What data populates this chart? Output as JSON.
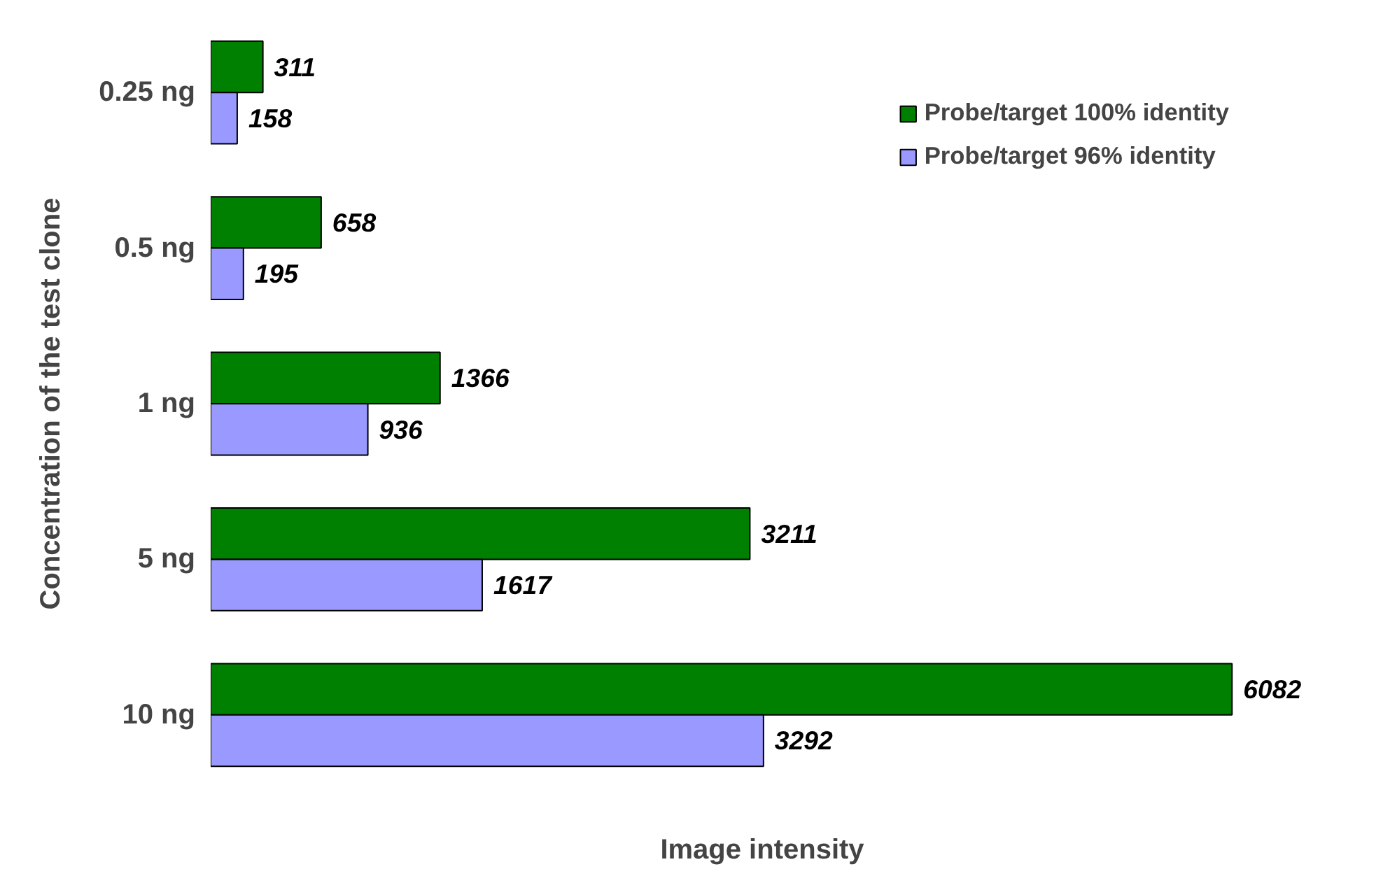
{
  "chart_data": {
    "type": "bar",
    "orientation": "horizontal",
    "xlabel": "Image intensity",
    "ylabel": "Concentration of the test clone",
    "categories": [
      "0.25 ng",
      "0.5 ng",
      "1 ng",
      "5 ng",
      "10 ng"
    ],
    "series": [
      {
        "name": "Probe/target 100% identity",
        "color": "#008000",
        "values": [
          311,
          658,
          1366,
          3211,
          6082
        ]
      },
      {
        "name": "Probe/target 96% identity",
        "color": "#9999ff",
        "values": [
          158,
          195,
          936,
          1617,
          3292
        ]
      }
    ],
    "data_labels": true,
    "legend": "top right",
    "grid": false
  }
}
